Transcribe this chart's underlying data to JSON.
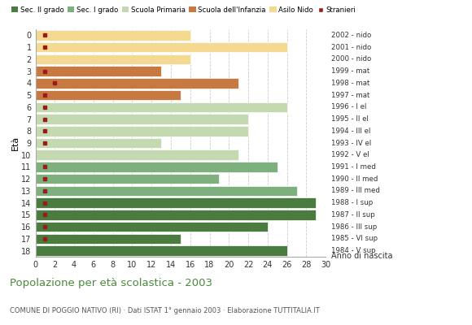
{
  "ages": [
    18,
    17,
    16,
    15,
    14,
    13,
    12,
    11,
    10,
    9,
    8,
    7,
    6,
    5,
    4,
    3,
    2,
    1,
    0
  ],
  "anno_nascita": [
    "1984 - V sup",
    "1985 - VI sup",
    "1986 - III sup",
    "1987 - II sup",
    "1988 - I sup",
    "1989 - III med",
    "1990 - II med",
    "1991 - I med",
    "1992 - V el",
    "1993 - IV el",
    "1994 - III el",
    "1995 - II el",
    "1996 - I el",
    "1997 - mat",
    "1998 - mat",
    "1999 - mat",
    "2000 - nido",
    "2001 - nido",
    "2002 - nido"
  ],
  "bar_values": [
    26,
    15,
    24,
    29,
    29,
    27,
    19,
    25,
    21,
    13,
    22,
    22,
    26,
    15,
    21,
    13,
    16,
    26,
    16
  ],
  "stranieri": [
    0,
    1,
    1,
    1,
    1,
    1,
    1,
    1,
    0,
    1,
    1,
    1,
    1,
    1,
    2,
    1,
    0,
    1,
    1
  ],
  "bar_colors": [
    "#4a7c3f",
    "#4a7c3f",
    "#4a7c3f",
    "#4a7c3f",
    "#4a7c3f",
    "#7db07d",
    "#7db07d",
    "#7db07d",
    "#c5d9b0",
    "#c5d9b0",
    "#c5d9b0",
    "#c5d9b0",
    "#c5d9b0",
    "#c87941",
    "#c87941",
    "#c87941",
    "#f5d990",
    "#f5d990",
    "#f5d990"
  ],
  "legend_labels": [
    "Sec. II grado",
    "Sec. I grado",
    "Scuola Primaria",
    "Scuola dell'Infanzia",
    "Asilo Nido",
    "Stranieri"
  ],
  "legend_colors": [
    "#4a7c3f",
    "#7db07d",
    "#c5d9b0",
    "#c87941",
    "#f5d990",
    "#9b1a1a"
  ],
  "stranieri_color": "#9b1a1a",
  "title": "Popolazione per età scolastica - 2003",
  "subtitle": "COMUNE DI POGGIO NATIVO (RI) · Dati ISTAT 1° gennaio 2003 · Elaborazione TUTTITALIA.IT",
  "ylabel": "Età",
  "xlim": [
    0,
    30
  ],
  "xticks": [
    0,
    2,
    4,
    6,
    8,
    10,
    12,
    14,
    16,
    18,
    20,
    22,
    24,
    26,
    28,
    30
  ],
  "bg_color": "#ffffff",
  "grid_color": "#cccccc",
  "bar_height": 0.85
}
